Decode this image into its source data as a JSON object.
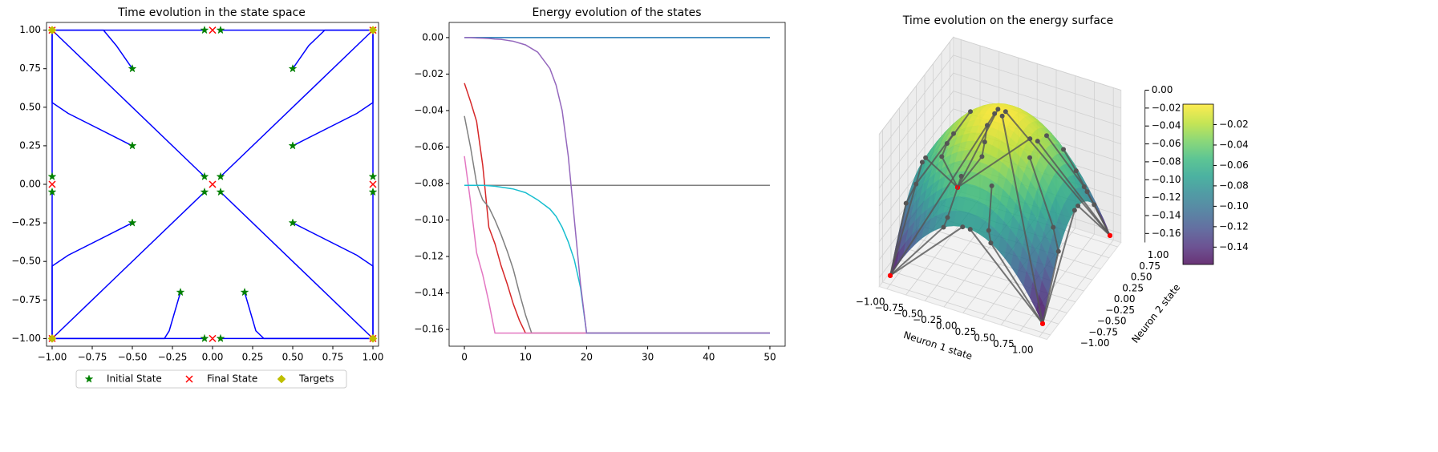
{
  "chart_data": [
    {
      "type": "scatter",
      "title": "Time evolution in the state space",
      "xlim": [
        -1.035,
        1.035
      ],
      "ylim": [
        -1.05,
        1.05
      ],
      "xticks": [
        {
          "value": -1,
          "label": "−1.00"
        },
        {
          "value": -0.75,
          "label": "−0.75"
        },
        {
          "value": -0.5,
          "label": "−0.50"
        },
        {
          "value": -0.25,
          "label": "−0.25"
        },
        {
          "value": 0,
          "label": "0.00"
        },
        {
          "value": 0.25,
          "label": "0.25"
        },
        {
          "value": 0.5,
          "label": "0.50"
        },
        {
          "value": 0.75,
          "label": "0.75"
        },
        {
          "value": 1,
          "label": "1.00"
        }
      ],
      "yticks": [
        {
          "value": -1,
          "label": "−1.00"
        },
        {
          "value": -0.75,
          "label": "−0.75"
        },
        {
          "value": -0.5,
          "label": "−0.50"
        },
        {
          "value": -0.25,
          "label": "−0.25"
        },
        {
          "value": 0,
          "label": "0.00"
        },
        {
          "value": 0.25,
          "label": "0.25"
        },
        {
          "value": 0.5,
          "label": "0.50"
        },
        {
          "value": 0.75,
          "label": "0.75"
        },
        {
          "value": 1,
          "label": "1.00"
        }
      ],
      "lines": {
        "color": "#0000ff",
        "paths": [
          {
            "x": [
              0.05,
              1
            ],
            "y": [
              1,
              1
            ]
          },
          {
            "x": [
              -0.05,
              -1
            ],
            "y": [
              1,
              1
            ]
          },
          {
            "x": [
              0.5,
              0.6,
              0.7,
              1
            ],
            "y": [
              0.75,
              0.9,
              1,
              1
            ]
          },
          {
            "x": [
              -0.5,
              -0.6,
              -0.68,
              -1
            ],
            "y": [
              0.75,
              0.9,
              1,
              1
            ]
          },
          {
            "x": [
              0.5,
              0.9,
              1,
              1
            ],
            "y": [
              0.25,
              0.46,
              0.53,
              1
            ]
          },
          {
            "x": [
              -0.5,
              -0.9,
              -1,
              -1
            ],
            "y": [
              0.25,
              0.46,
              0.53,
              1
            ]
          },
          {
            "x": [
              0.05,
              1
            ],
            "y": [
              0.05,
              1
            ]
          },
          {
            "x": [
              -0.05,
              -1
            ],
            "y": [
              0.05,
              1
            ]
          },
          {
            "x": [
              0.05,
              1
            ],
            "y": [
              -0.05,
              -1
            ]
          },
          {
            "x": [
              -0.05,
              -1
            ],
            "y": [
              -0.05,
              -1
            ]
          },
          {
            "x": [
              1,
              1
            ],
            "y": [
              0.05,
              1
            ]
          },
          {
            "x": [
              1,
              1
            ],
            "y": [
              -0.05,
              -1
            ]
          },
          {
            "x": [
              -1,
              -1
            ],
            "y": [
              0.05,
              1
            ]
          },
          {
            "x": [
              -1,
              -1
            ],
            "y": [
              -0.05,
              -1
            ]
          },
          {
            "x": [
              0.5,
              0.9,
              1,
              1
            ],
            "y": [
              -0.25,
              -0.46,
              -0.53,
              -1
            ]
          },
          {
            "x": [
              -0.5,
              -0.9,
              -1,
              -1
            ],
            "y": [
              -0.25,
              -0.46,
              -0.53,
              -1
            ]
          },
          {
            "x": [
              0.2,
              0.27,
              0.32,
              1
            ],
            "y": [
              -0.7,
              -0.95,
              -1,
              -1
            ]
          },
          {
            "x": [
              -0.2,
              -0.27,
              -0.3,
              -1
            ],
            "y": [
              -0.7,
              -0.95,
              -1,
              -1
            ]
          },
          {
            "x": [
              0.05,
              1
            ],
            "y": [
              -1,
              -1
            ]
          },
          {
            "x": [
              -0.05,
              -1
            ],
            "y": [
              -1,
              -1
            ]
          }
        ]
      },
      "series": [
        {
          "name": "Initial State",
          "marker": "star",
          "color": "#008000",
          "x": [
            -0.05,
            0.05,
            -0.5,
            0.5,
            -0.5,
            0.5,
            -1,
            -1,
            1,
            1,
            -0.05,
            0.05,
            -0.05,
            0.05,
            -0.5,
            0.5,
            -0.2,
            0.2,
            -0.05,
            0.05
          ],
          "y": [
            1,
            1,
            0.75,
            0.75,
            0.25,
            0.25,
            0.05,
            -0.05,
            0.05,
            -0.05,
            0.05,
            0.05,
            -0.05,
            -0.05,
            -0.25,
            -0.25,
            -0.7,
            -0.7,
            -1,
            -1
          ]
        },
        {
          "name": "Final State",
          "marker": "x",
          "color": "#ff0000",
          "x": [
            -1,
            0,
            1,
            -1,
            0,
            1,
            -1,
            0,
            1
          ],
          "y": [
            1,
            1,
            1,
            0,
            0,
            0,
            -1,
            -1,
            -1
          ]
        },
        {
          "name": "Targets",
          "marker": "diamond",
          "color": "#bfbf00",
          "x": [
            -1,
            1,
            -1,
            1
          ],
          "y": [
            1,
            1,
            -1,
            -1
          ]
        }
      ],
      "legend": "lower center"
    },
    {
      "type": "line",
      "title": "Energy evolution of the states",
      "xlim": [
        -2.5,
        52.5
      ],
      "ylim": [
        -0.1692,
        0.0083
      ],
      "xticks": [
        0,
        10,
        20,
        30,
        40,
        50
      ],
      "yticks": [
        {
          "value": 0,
          "label": "0.00"
        },
        {
          "value": -0.02,
          "label": "−0.02"
        },
        {
          "value": -0.04,
          "label": "−0.04"
        },
        {
          "value": -0.06,
          "label": "−0.06"
        },
        {
          "value": -0.08,
          "label": "−0.08"
        },
        {
          "value": -0.1,
          "label": "−0.10"
        },
        {
          "value": -0.12,
          "label": "−0.12"
        },
        {
          "value": -0.14,
          "label": "−0.14"
        },
        {
          "value": -0.16,
          "label": "−0.16"
        }
      ],
      "x": [
        0,
        1,
        2,
        3,
        4,
        5,
        6,
        7,
        8,
        9,
        10,
        11,
        12,
        14,
        15,
        16,
        17,
        18,
        19,
        20,
        30,
        40,
        50
      ],
      "series": [
        {
          "color": "#1f77b4",
          "values": [
            0,
            0,
            0,
            0,
            0,
            0,
            0,
            0,
            0,
            0,
            0,
            0,
            0,
            0,
            0,
            0,
            0,
            0,
            0,
            0,
            0,
            0,
            0
          ]
        },
        {
          "color": "#7f7f7f",
          "values": [
            -0.081,
            -0.081,
            -0.081,
            -0.081,
            -0.081,
            -0.081,
            -0.081,
            -0.081,
            -0.081,
            -0.081,
            -0.081,
            -0.081,
            -0.081,
            -0.081,
            -0.081,
            -0.081,
            -0.081,
            -0.081,
            -0.081,
            -0.081,
            -0.081,
            -0.081,
            -0.081
          ]
        },
        {
          "color": "#d62728",
          "values": [
            -0.025,
            -0.035,
            -0.046,
            -0.07,
            -0.104,
            -0.113,
            -0.125,
            -0.135,
            -0.146,
            -0.155,
            -0.162,
            -0.162,
            -0.162,
            -0.162,
            -0.162,
            -0.162,
            -0.162,
            -0.162,
            -0.162,
            -0.162,
            -0.162,
            -0.162,
            -0.162
          ]
        },
        {
          "color": "#7f7f7f",
          "values": [
            -0.043,
            -0.06,
            -0.08,
            -0.089,
            -0.093,
            -0.1,
            -0.108,
            -0.117,
            -0.127,
            -0.14,
            -0.152,
            -0.162,
            -0.162,
            -0.162,
            -0.162,
            -0.162,
            -0.162,
            -0.162,
            -0.162,
            -0.162,
            -0.162,
            -0.162,
            -0.162
          ]
        },
        {
          "color": "#e377c2",
          "values": [
            -0.065,
            -0.09,
            -0.118,
            -0.13,
            -0.145,
            -0.162,
            -0.162,
            -0.162,
            -0.162,
            -0.162,
            -0.162,
            -0.162,
            -0.162,
            -0.162,
            -0.162,
            -0.162,
            -0.162,
            -0.162,
            -0.162,
            -0.162,
            -0.162,
            -0.162,
            -0.162
          ]
        },
        {
          "color": "#17becf",
          "values": [
            -0.081,
            -0.081,
            -0.081,
            -0.081,
            -0.0812,
            -0.0815,
            -0.082,
            -0.0825,
            -0.083,
            -0.084,
            -0.085,
            -0.087,
            -0.089,
            -0.094,
            -0.098,
            -0.104,
            -0.112,
            -0.122,
            -0.137,
            -0.162,
            -0.162,
            -0.162,
            -0.162
          ]
        },
        {
          "color": "#9467bd",
          "values": [
            0,
            0,
            -0.0002,
            -0.0003,
            -0.0005,
            -0.0008,
            -0.001,
            -0.0015,
            -0.002,
            -0.003,
            -0.004,
            -0.006,
            -0.008,
            -0.017,
            -0.026,
            -0.04,
            -0.065,
            -0.1,
            -0.135,
            -0.162,
            -0.162,
            -0.162,
            -0.162
          ]
        }
      ]
    },
    {
      "type": "surface",
      "title": "Time evolution on the energy surface",
      "xlabel": "Neuron 1 state",
      "ylabel": "Neuron 2 state",
      "cmap": "viridis",
      "xlim": [
        -1.1,
        1.1
      ],
      "ylim": [
        -1.1,
        1.1
      ],
      "zlim": [
        -0.17,
        0
      ],
      "xticks": [
        {
          "value": -1,
          "label": "−1.00"
        },
        {
          "value": -0.75,
          "label": "−0.75"
        },
        {
          "value": -0.5,
          "label": "−0.50"
        },
        {
          "value": -0.25,
          "label": "−0.25"
        },
        {
          "value": 0,
          "label": "0.00"
        },
        {
          "value": 0.25,
          "label": "0.25"
        },
        {
          "value": 0.5,
          "label": "0.50"
        },
        {
          "value": 0.75,
          "label": "0.75"
        },
        {
          "value": 1,
          "label": "1.00"
        }
      ],
      "yticks": [
        {
          "value": -1,
          "label": "−1.00"
        },
        {
          "value": -0.75,
          "label": "−0.75"
        },
        {
          "value": -0.5,
          "label": "−0.50"
        },
        {
          "value": -0.25,
          "label": "−0.25"
        },
        {
          "value": 0,
          "label": "0.00"
        },
        {
          "value": 0.25,
          "label": "0.25"
        },
        {
          "value": 0.5,
          "label": "0.50"
        },
        {
          "value": 0.75,
          "label": "0.75"
        },
        {
          "value": 1,
          "label": "1.00"
        }
      ],
      "zticks": [
        {
          "value": 0,
          "label": "0.00"
        },
        {
          "value": -0.02,
          "label": "−0.02"
        },
        {
          "value": -0.04,
          "label": "−0.04"
        },
        {
          "value": -0.06,
          "label": "−0.06"
        },
        {
          "value": -0.08,
          "label": "−0.08"
        },
        {
          "value": -0.1,
          "label": "−0.10"
        },
        {
          "value": -0.12,
          "label": "−0.12"
        },
        {
          "value": -0.14,
          "label": "−0.14"
        },
        {
          "value": -0.16,
          "label": "−0.16"
        }
      ],
      "clim": [
        -0.157,
        0
      ],
      "cticks": [
        {
          "value": -0.02,
          "label": "−0.02"
        },
        {
          "value": -0.04,
          "label": "−0.04"
        },
        {
          "value": -0.06,
          "label": "−0.06"
        },
        {
          "value": -0.08,
          "label": "−0.08"
        },
        {
          "value": -0.1,
          "label": "−0.10"
        },
        {
          "value": -0.12,
          "label": "−0.12"
        },
        {
          "value": -0.14,
          "label": "−0.14"
        }
      ]
    }
  ]
}
